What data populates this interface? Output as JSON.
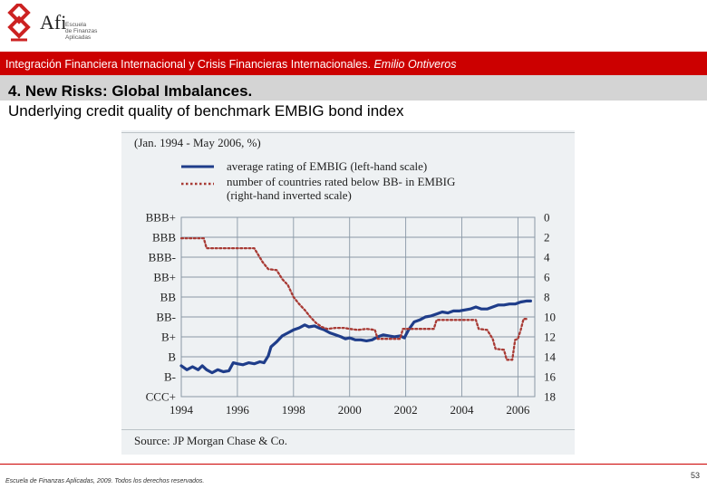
{
  "logo": {
    "name": "Afi",
    "sub": [
      "Escuela",
      "de Finanzas",
      "Aplicadas"
    ],
    "color": "#cc2222"
  },
  "header": {
    "banner_text": "Integración Financiera Internacional y Crisis Financieras Internacionales.",
    "banner_author": "Emilio Ontiveros"
  },
  "slide": {
    "title": "4. New Risks: Global Imbalances.",
    "subtitle": "Underlying credit quality of benchmark EMBIG bond index"
  },
  "footer": {
    "text": "Escuela de Finanzas Aplicadas, 2009. Todos los derechos reservados.",
    "page": "53"
  },
  "chart_data": {
    "type": "line",
    "title": "(Jan. 1994 - May 2006, %)",
    "source": "Source: JP Morgan Chase & Co.",
    "xlim": [
      1994,
      2006.6
    ],
    "x_ticks": [
      1994,
      1996,
      1998,
      2000,
      2002,
      2004,
      2006
    ],
    "left_axis": {
      "labels": [
        "BBB+",
        "BBB",
        "BBB-",
        "BB+",
        "BB",
        "BB-",
        "B+",
        "B",
        "B-",
        "CCC+"
      ]
    },
    "right_axis": {
      "inverted": true,
      "ticks": [
        0,
        2,
        4,
        6,
        8,
        10,
        12,
        14,
        16,
        18
      ],
      "ylim": [
        0,
        18
      ]
    },
    "grid": true,
    "legend_position": "top",
    "series": [
      {
        "name": "average rating of EMBIG (left-hand scale)",
        "axis": "left",
        "color": "#1f3d8a",
        "style": "solid",
        "points": [
          [
            1994.0,
            1.55
          ],
          [
            1994.2,
            1.35
          ],
          [
            1994.4,
            1.5
          ],
          [
            1994.6,
            1.35
          ],
          [
            1994.75,
            1.55
          ],
          [
            1994.9,
            1.35
          ],
          [
            1995.1,
            1.2
          ],
          [
            1995.3,
            1.35
          ],
          [
            1995.5,
            1.25
          ],
          [
            1995.7,
            1.3
          ],
          [
            1995.85,
            1.7
          ],
          [
            1996.0,
            1.65
          ],
          [
            1996.2,
            1.6
          ],
          [
            1996.4,
            1.7
          ],
          [
            1996.6,
            1.65
          ],
          [
            1996.8,
            1.75
          ],
          [
            1996.95,
            1.7
          ],
          [
            1997.1,
            2.05
          ],
          [
            1997.2,
            2.5
          ],
          [
            1997.4,
            2.75
          ],
          [
            1997.6,
            3.05
          ],
          [
            1997.8,
            3.2
          ],
          [
            1998.0,
            3.35
          ],
          [
            1998.2,
            3.45
          ],
          [
            1998.4,
            3.6
          ],
          [
            1998.55,
            3.5
          ],
          [
            1998.75,
            3.55
          ],
          [
            1998.9,
            3.45
          ],
          [
            1999.1,
            3.35
          ],
          [
            1999.3,
            3.2
          ],
          [
            1999.5,
            3.1
          ],
          [
            1999.7,
            3.0
          ],
          [
            1999.85,
            2.9
          ],
          [
            2000.0,
            2.95
          ],
          [
            2000.2,
            2.85
          ],
          [
            2000.4,
            2.85
          ],
          [
            2000.6,
            2.8
          ],
          [
            2000.8,
            2.85
          ],
          [
            2001.0,
            3.0
          ],
          [
            2001.2,
            3.1
          ],
          [
            2001.4,
            3.05
          ],
          [
            2001.6,
            3.0
          ],
          [
            2001.8,
            3.05
          ],
          [
            2001.95,
            2.95
          ],
          [
            2002.1,
            3.35
          ],
          [
            2002.3,
            3.75
          ],
          [
            2002.5,
            3.85
          ],
          [
            2002.7,
            4.0
          ],
          [
            2002.9,
            4.05
          ],
          [
            2003.1,
            4.15
          ],
          [
            2003.3,
            4.25
          ],
          [
            2003.5,
            4.2
          ],
          [
            2003.7,
            4.3
          ],
          [
            2003.9,
            4.3
          ],
          [
            2004.1,
            4.35
          ],
          [
            2004.3,
            4.4
          ],
          [
            2004.5,
            4.5
          ],
          [
            2004.7,
            4.4
          ],
          [
            2004.9,
            4.4
          ],
          [
            2005.1,
            4.5
          ],
          [
            2005.3,
            4.6
          ],
          [
            2005.5,
            4.6
          ],
          [
            2005.7,
            4.65
          ],
          [
            2005.9,
            4.65
          ],
          [
            2006.1,
            4.75
          ],
          [
            2006.3,
            4.8
          ],
          [
            2006.45,
            4.8
          ]
        ]
      },
      {
        "name": "number of countries rated below BB- in EMBIG (right-hand inverted scale)",
        "axis": "right",
        "color": "#a83a34",
        "style": "dotted",
        "points": [
          [
            1994.0,
            2.1
          ],
          [
            1994.8,
            2.1
          ],
          [
            1994.9,
            3.1
          ],
          [
            1996.6,
            3.1
          ],
          [
            1996.9,
            4.5
          ],
          [
            1997.1,
            5.2
          ],
          [
            1997.4,
            5.3
          ],
          [
            1997.6,
            6.2
          ],
          [
            1997.8,
            6.8
          ],
          [
            1998.0,
            8.0
          ],
          [
            1998.2,
            8.7
          ],
          [
            1998.4,
            9.3
          ],
          [
            1998.6,
            10.0
          ],
          [
            1998.8,
            10.6
          ],
          [
            1999.0,
            11.0
          ],
          [
            1999.2,
            11.2
          ],
          [
            1999.5,
            11.1
          ],
          [
            1999.8,
            11.1
          ],
          [
            2000.0,
            11.2
          ],
          [
            2000.3,
            11.3
          ],
          [
            2000.6,
            11.2
          ],
          [
            2000.9,
            11.3
          ],
          [
            2001.0,
            12.2
          ],
          [
            2001.8,
            12.2
          ],
          [
            2001.9,
            11.2
          ],
          [
            2003.0,
            11.2
          ],
          [
            2003.1,
            10.3
          ],
          [
            2004.5,
            10.3
          ],
          [
            2004.6,
            11.2
          ],
          [
            2004.9,
            11.3
          ],
          [
            2005.1,
            12.2
          ],
          [
            2005.2,
            13.2
          ],
          [
            2005.5,
            13.3
          ],
          [
            2005.6,
            14.3
          ],
          [
            2005.8,
            14.3
          ],
          [
            2005.9,
            12.3
          ],
          [
            2006.0,
            12.2
          ],
          [
            2006.1,
            11.3
          ],
          [
            2006.2,
            10.2
          ],
          [
            2006.35,
            10.2
          ]
        ]
      }
    ]
  }
}
